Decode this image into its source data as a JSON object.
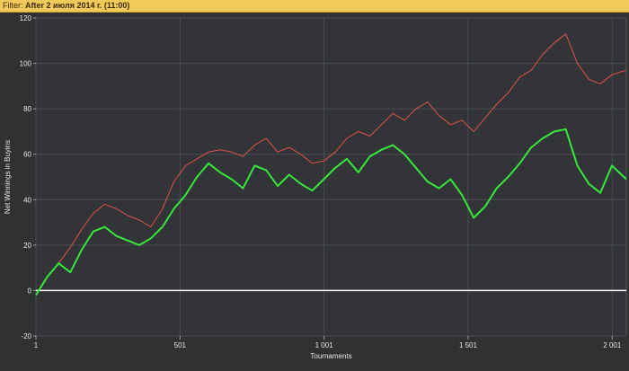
{
  "filter": {
    "label": "Filter:",
    "value": "After 2 июля 2014 г. (11:00)"
  },
  "colors": {
    "background": "#2f3133",
    "plot_bg": "#323437",
    "grid": "#4a4d50",
    "zero_line": "#ffffff",
    "series_red": "#e0524d",
    "series_green": "#36e83a",
    "filter_bg": "#f2c95b"
  },
  "chart_data": {
    "type": "line",
    "title": "",
    "xlabel": "Tournaments",
    "ylabel": "Net Winnings in Buyins",
    "xlim": [
      1,
      2050
    ],
    "ylim": [
      -20,
      120
    ],
    "x_ticks": [
      1,
      501,
      1001,
      1501,
      2001
    ],
    "x_tick_labels": [
      "1",
      "501",
      "1 001",
      "1 501",
      "2 001"
    ],
    "y_ticks": [
      -20,
      0,
      20,
      40,
      60,
      80,
      100,
      120
    ],
    "y_tick_labels": [
      "-20",
      "0",
      "20",
      "40",
      "60",
      "80",
      "100",
      "120"
    ],
    "grid": true,
    "legend": "none",
    "series": [
      {
        "color": "#e0524d",
        "x": [
          1,
          40,
          80,
          120,
          160,
          200,
          240,
          280,
          320,
          360,
          400,
          440,
          480,
          520,
          560,
          600,
          640,
          680,
          720,
          760,
          800,
          840,
          880,
          920,
          960,
          1000,
          1040,
          1080,
          1120,
          1160,
          1200,
          1240,
          1280,
          1320,
          1360,
          1400,
          1440,
          1480,
          1520,
          1560,
          1600,
          1640,
          1680,
          1720,
          1760,
          1800,
          1840,
          1880,
          1920,
          1960,
          2000,
          2050
        ],
        "y": [
          -2,
          6,
          12,
          19,
          27,
          34,
          38,
          36,
          33,
          31,
          28,
          36,
          48,
          55,
          58,
          61,
          62,
          61,
          59,
          64,
          67,
          61,
          63,
          60,
          56,
          57,
          61,
          67,
          70,
          68,
          73,
          78,
          75,
          80,
          83,
          77,
          73,
          75,
          70,
          76,
          82,
          87,
          94,
          97,
          104,
          109,
          113,
          100,
          93,
          91,
          95,
          97
        ]
      },
      {
        "color": "#36e83a",
        "x": [
          1,
          40,
          80,
          120,
          160,
          200,
          240,
          280,
          320,
          360,
          400,
          440,
          480,
          520,
          560,
          600,
          640,
          680,
          720,
          760,
          800,
          840,
          880,
          920,
          960,
          1000,
          1040,
          1080,
          1120,
          1160,
          1200,
          1240,
          1280,
          1320,
          1360,
          1400,
          1440,
          1480,
          1520,
          1560,
          1600,
          1640,
          1680,
          1720,
          1760,
          1800,
          1840,
          1880,
          1920,
          1960,
          2000,
          2050
        ],
        "y": [
          -2,
          6,
          12,
          8,
          18,
          26,
          28,
          24,
          22,
          20,
          23,
          28,
          36,
          42,
          50,
          56,
          52,
          49,
          45,
          55,
          53,
          46,
          51,
          47,
          44,
          49,
          54,
          58,
          52,
          59,
          62,
          64,
          60,
          54,
          48,
          45,
          49,
          42,
          32,
          37,
          45,
          50,
          56,
          63,
          67,
          70,
          71,
          55,
          47,
          43,
          55,
          49
        ]
      }
    ]
  }
}
